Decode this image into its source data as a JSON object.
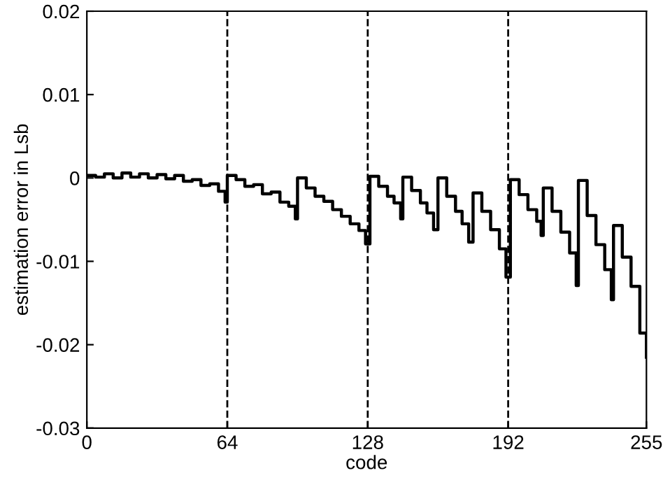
{
  "chart_data": {
    "type": "step",
    "xlabel": "code",
    "ylabel": "estimation error in Lsb",
    "xlim": [
      0,
      255
    ],
    "xticks": [
      0,
      64,
      128,
      192,
      255
    ],
    "ylim": [
      -0.03,
      0.02
    ],
    "yticks": [
      {
        "value": -0.03,
        "label": "-0.03"
      },
      {
        "value": -0.02,
        "label": "-0.02"
      },
      {
        "value": -0.01,
        "label": "-0.01"
      },
      {
        "value": 0,
        "label": "0"
      },
      {
        "value": 0.01,
        "label": "0.01"
      },
      {
        "value": 0.02,
        "label": "0.02"
      }
    ],
    "grid": false,
    "legend": false,
    "marker": "none",
    "line_style": "solid",
    "ref_lines": [
      {
        "axis": "x",
        "value": 64,
        "line_style": "dashed",
        "color": "#000000"
      },
      {
        "axis": "x",
        "value": 128,
        "line_style": "dashed",
        "color": "#000000"
      },
      {
        "axis": "x",
        "value": 192,
        "line_style": "dashed",
        "color": "#000000"
      }
    ],
    "series": [
      {
        "color": "#000000",
        "x": [
          0,
          4,
          8,
          12,
          16,
          20,
          24,
          28,
          32,
          36,
          40,
          44,
          48,
          52,
          56,
          60,
          63,
          64,
          68,
          72,
          76,
          80,
          84,
          88,
          92,
          95,
          96,
          100,
          104,
          108,
          112,
          116,
          120,
          124,
          127,
          129,
          133,
          137,
          140,
          143,
          144,
          148,
          152,
          155,
          158,
          160,
          164,
          168,
          171,
          174,
          176,
          180,
          184,
          188,
          191,
          193,
          197,
          201,
          205,
          207,
          208,
          212,
          216,
          220,
          223,
          224,
          228,
          232,
          236,
          239,
          240,
          244,
          248,
          252,
          255
        ],
        "values": [
          0.0003,
          0.0001,
          0.0005,
          0.0,
          0.0006,
          0.0001,
          0.0005,
          0.0,
          0.0004,
          -0.0001,
          0.0003,
          -0.0004,
          -0.0002,
          -0.0009,
          -0.0007,
          -0.0016,
          -0.0029,
          0.0003,
          -0.0002,
          -0.001,
          -0.0008,
          -0.0019,
          -0.0017,
          -0.0029,
          -0.0034,
          -0.0049,
          0.0,
          -0.0012,
          -0.0022,
          -0.0028,
          -0.0038,
          -0.0046,
          -0.0055,
          -0.0063,
          -0.0079,
          0.0002,
          -0.001,
          -0.0022,
          -0.003,
          -0.0049,
          0.0001,
          -0.0015,
          -0.003,
          -0.0042,
          -0.0062,
          0.0,
          -0.0022,
          -0.004,
          -0.0055,
          -0.0077,
          -0.0018,
          -0.004,
          -0.0062,
          -0.0085,
          -0.0119,
          -0.0002,
          -0.002,
          -0.0038,
          -0.0052,
          -0.0069,
          -0.0012,
          -0.004,
          -0.0065,
          -0.009,
          -0.0129,
          -0.0003,
          -0.0045,
          -0.008,
          -0.011,
          -0.0146,
          -0.0057,
          -0.0095,
          -0.013,
          -0.0186,
          -0.0215
        ]
      }
    ]
  }
}
